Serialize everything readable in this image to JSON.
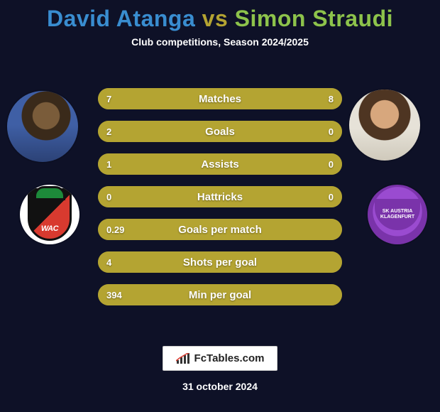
{
  "background_color": "#0e1127",
  "title": {
    "player1_name": "David Atanga",
    "vs_text": "vs",
    "player2_name": "Simon Straudi",
    "player1_color": "#398dd0",
    "vs_color": "#b4a432",
    "player2_color": "#8dc34b"
  },
  "subtitle": "Club competitions, Season 2024/2025",
  "colors": {
    "bar_dark": "#76712c",
    "bar_light": "#b4a432",
    "bar_bg": "#76712c"
  },
  "stats": [
    {
      "label": "Matches",
      "v1": "7",
      "v2": "8",
      "p1": 0.467,
      "p2": 0.533
    },
    {
      "label": "Goals",
      "v1": "2",
      "v2": "0",
      "p1": 1.0,
      "p2": 0.0
    },
    {
      "label": "Assists",
      "v1": "1",
      "v2": "0",
      "p1": 1.0,
      "p2": 0.0
    },
    {
      "label": "Hattricks",
      "v1": "0",
      "v2": "0",
      "p1": 0.5,
      "p2": 0.5
    },
    {
      "label": "Goals per match",
      "v1": "0.29",
      "v2": "",
      "p1": 1.0,
      "p2": 0.0
    },
    {
      "label": "Shots per goal",
      "v1": "4",
      "v2": "",
      "p1": 1.0,
      "p2": 0.0
    },
    {
      "label": "Min per goal",
      "v1": "394",
      "v2": "",
      "p1": 1.0,
      "p2": 0.0
    }
  ],
  "club_left_abbr": "WAC",
  "club_right_text": "SK AUSTRIA KLAGENFURT",
  "brand": "FcTables.com",
  "date": "31 october 2024"
}
